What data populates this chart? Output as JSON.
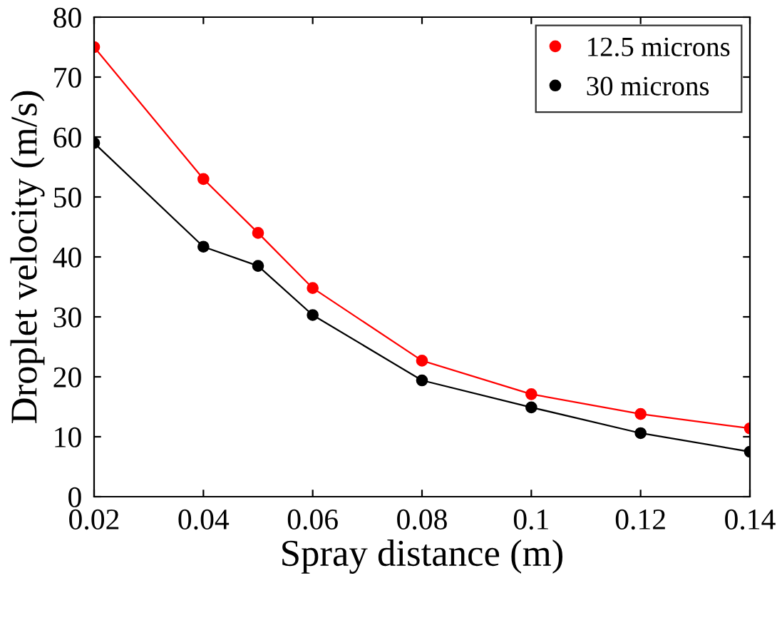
{
  "chart_data": {
    "type": "line",
    "xlabel": "Spray distance (m)",
    "ylabel": "Droplet velocity (m/s)",
    "x": [
      0.02,
      0.04,
      0.05,
      0.06,
      0.08,
      0.1,
      0.12,
      0.14
    ],
    "series": [
      {
        "name": "12.5 microns",
        "color": "#ff0000",
        "values": [
          75,
          53,
          44,
          34.8,
          22.7,
          17.1,
          13.8,
          11.4
        ]
      },
      {
        "name": "30 microns",
        "color": "#000000",
        "values": [
          59,
          41.7,
          38.5,
          30.3,
          19.4,
          14.9,
          10.6,
          7.5
        ]
      }
    ],
    "xlim": [
      0.02,
      0.14
    ],
    "ylim": [
      0,
      80
    ],
    "xticks": [
      0.02,
      0.04,
      0.06,
      0.08,
      0.1,
      0.12,
      0.14
    ],
    "yticks": [
      0,
      10,
      20,
      30,
      40,
      50,
      60,
      70,
      80
    ],
    "grid": false,
    "legend": "top right",
    "marker": "circle",
    "line_style": "solid"
  }
}
